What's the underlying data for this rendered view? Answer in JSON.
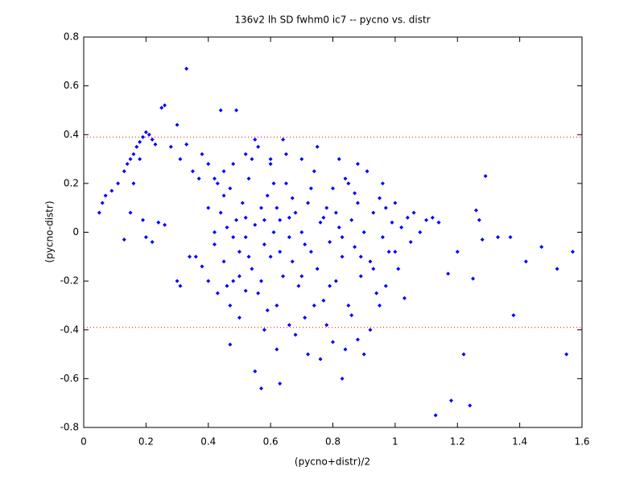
{
  "chart_data": {
    "type": "scatter",
    "title": "136v2 lh SD fwhm0 ic7 -- pycno vs. distr",
    "xlabel": "(pycno+distr)/2",
    "ylabel": "(pycno-distr)",
    "color": "#0000ff",
    "xlim": [
      0,
      1.6
    ],
    "ylim": [
      -0.8,
      0.8
    ],
    "xticks": [
      0,
      0.2,
      0.4,
      0.6,
      0.8,
      1,
      1.2,
      1.4,
      1.6
    ],
    "yticks": [
      -0.8,
      -0.6,
      -0.4,
      -0.2,
      0,
      0.2,
      0.4,
      0.6,
      0.8
    ],
    "hlines": [
      0.39,
      -0.39
    ],
    "hline_color": "#ff0000",
    "x": [
      0.33,
      0.44,
      0.49,
      0.25,
      0.26,
      1.29,
      1.13,
      1.18,
      1.24,
      1.22,
      1.55,
      1.57,
      1.52,
      1.38,
      1.47,
      1.37,
      1.33,
      1.26,
      1.27,
      1.28,
      1.2,
      1.17,
      1.25,
      1.42,
      0.57,
      0.55,
      0.63,
      0.47,
      0.05,
      0.07,
      0.13,
      0.06,
      0.09,
      0.11,
      0.13,
      0.14,
      0.15,
      0.16,
      0.17,
      0.18,
      0.19,
      0.2,
      0.21,
      0.22,
      0.23,
      0.18,
      0.16,
      0.15,
      0.19,
      0.2,
      0.22,
      0.24,
      0.26,
      0.28,
      0.3,
      0.31,
      0.33,
      0.35,
      0.37,
      0.38,
      0.4,
      0.3,
      0.31,
      0.34,
      0.36,
      0.38,
      0.4,
      0.42,
      0.43,
      0.45,
      0.42,
      0.44,
      0.45,
      0.46,
      0.47,
      0.48,
      0.49,
      0.5,
      0.51,
      0.52,
      0.53,
      0.54,
      0.55,
      0.56,
      0.57,
      0.58,
      0.59,
      0.6,
      0.61,
      0.62,
      0.63,
      0.64,
      0.65,
      0.66,
      0.67,
      0.68,
      0.69,
      0.7,
      0.71,
      0.72,
      0.73,
      0.74,
      0.75,
      0.76,
      0.77,
      0.78,
      0.79,
      0.8,
      0.81,
      0.82,
      0.83,
      0.84,
      0.85,
      0.86,
      0.87,
      0.88,
      0.89,
      0.9,
      0.91,
      0.92,
      0.93,
      0.94,
      0.95,
      0.96,
      0.97,
      0.98,
      0.99,
      1.0,
      1.01,
      1.02,
      1.03,
      1.04,
      1.05,
      1.06,
      1.08,
      1.1,
      1.12,
      1.14,
      0.47,
      0.5,
      0.52,
      0.54,
      0.56,
      0.58,
      0.6,
      0.62,
      0.64,
      0.66,
      0.68,
      0.7,
      0.72,
      0.74,
      0.76,
      0.78,
      0.8,
      0.83,
      0.84,
      0.86,
      0.88,
      0.9,
      0.92,
      0.95,
      0.97,
      0.88,
      0.85,
      0.82,
      0.75,
      0.7,
      0.65,
      0.6,
      0.55,
      0.52,
      0.48,
      0.45,
      0.42,
      0.4,
      0.43,
      0.46,
      0.5,
      0.53,
      0.57,
      0.59,
      0.61,
      0.63,
      0.67,
      0.71,
      0.73,
      0.77,
      0.79,
      0.81,
      0.83,
      0.87,
      0.89,
      0.93,
      0.96,
      1.0,
      0.58,
      0.62,
      0.66,
      0.52,
      0.48
    ],
    "values": [
      0.67,
      0.5,
      0.5,
      0.51,
      0.52,
      0.23,
      -0.75,
      -0.69,
      -0.71,
      -0.5,
      -0.5,
      -0.08,
      -0.15,
      -0.34,
      -0.06,
      -0.02,
      -0.02,
      0.09,
      0.05,
      -0.03,
      -0.08,
      -0.17,
      -0.19,
      -0.12,
      -0.64,
      -0.57,
      -0.62,
      -0.46,
      0.08,
      0.15,
      -0.03,
      0.12,
      0.17,
      0.2,
      0.25,
      0.28,
      0.3,
      0.32,
      0.35,
      0.37,
      0.39,
      0.41,
      0.4,
      0.38,
      0.36,
      0.3,
      0.2,
      0.08,
      0.05,
      -0.02,
      -0.04,
      0.04,
      0.03,
      0.35,
      0.44,
      0.3,
      0.36,
      0.25,
      0.22,
      0.32,
      0.28,
      -0.2,
      -0.22,
      -0.1,
      -0.1,
      -0.14,
      0.1,
      0.0,
      0.2,
      0.15,
      -0.05,
      0.08,
      -0.12,
      0.02,
      0.18,
      -0.2,
      0.05,
      -0.08,
      0.12,
      -0.02,
      0.22,
      -0.15,
      0.03,
      -0.25,
      0.1,
      -0.05,
      0.15,
      -0.1,
      0.0,
      -0.3,
      0.05,
      -0.18,
      0.2,
      -0.02,
      -0.12,
      0.08,
      -0.22,
      0.0,
      -0.35,
      0.12,
      -0.08,
      0.25,
      -0.15,
      0.04,
      -0.28,
      0.1,
      -0.04,
      0.18,
      -0.2,
      0.02,
      -0.1,
      0.22,
      -0.3,
      0.05,
      -0.06,
      0.12,
      -0.18,
      0.0,
      0.25,
      -0.12,
      0.08,
      -0.25,
      0.14,
      -0.02,
      0.1,
      -0.08,
      0.04,
      0.12,
      -0.15,
      0.02,
      -0.27,
      0.06,
      -0.04,
      0.08,
      0.0,
      0.05,
      0.06,
      0.04,
      -0.3,
      -0.35,
      -0.24,
      0.3,
      0.35,
      -0.4,
      0.3,
      -0.48,
      0.38,
      -0.38,
      -0.42,
      -0.18,
      -0.5,
      -0.3,
      -0.52,
      -0.38,
      -0.45,
      -0.6,
      -0.48,
      -0.34,
      -0.44,
      -0.5,
      -0.4,
      -0.3,
      -0.22,
      0.28,
      0.2,
      0.3,
      0.35,
      0.3,
      0.32,
      0.28,
      0.38,
      0.32,
      0.28,
      0.25,
      0.22,
      -0.2,
      -0.25,
      -0.22,
      -0.18,
      -0.1,
      -0.2,
      -0.32,
      0.2,
      -0.08,
      0.14,
      -0.05,
      0.18,
      0.06,
      -0.22,
      0.08,
      -0.02,
      0.16,
      -0.1,
      -0.15,
      0.2,
      -0.08,
      0.05,
      0.1,
      0.06,
      0.06,
      -0.02
    ]
  }
}
